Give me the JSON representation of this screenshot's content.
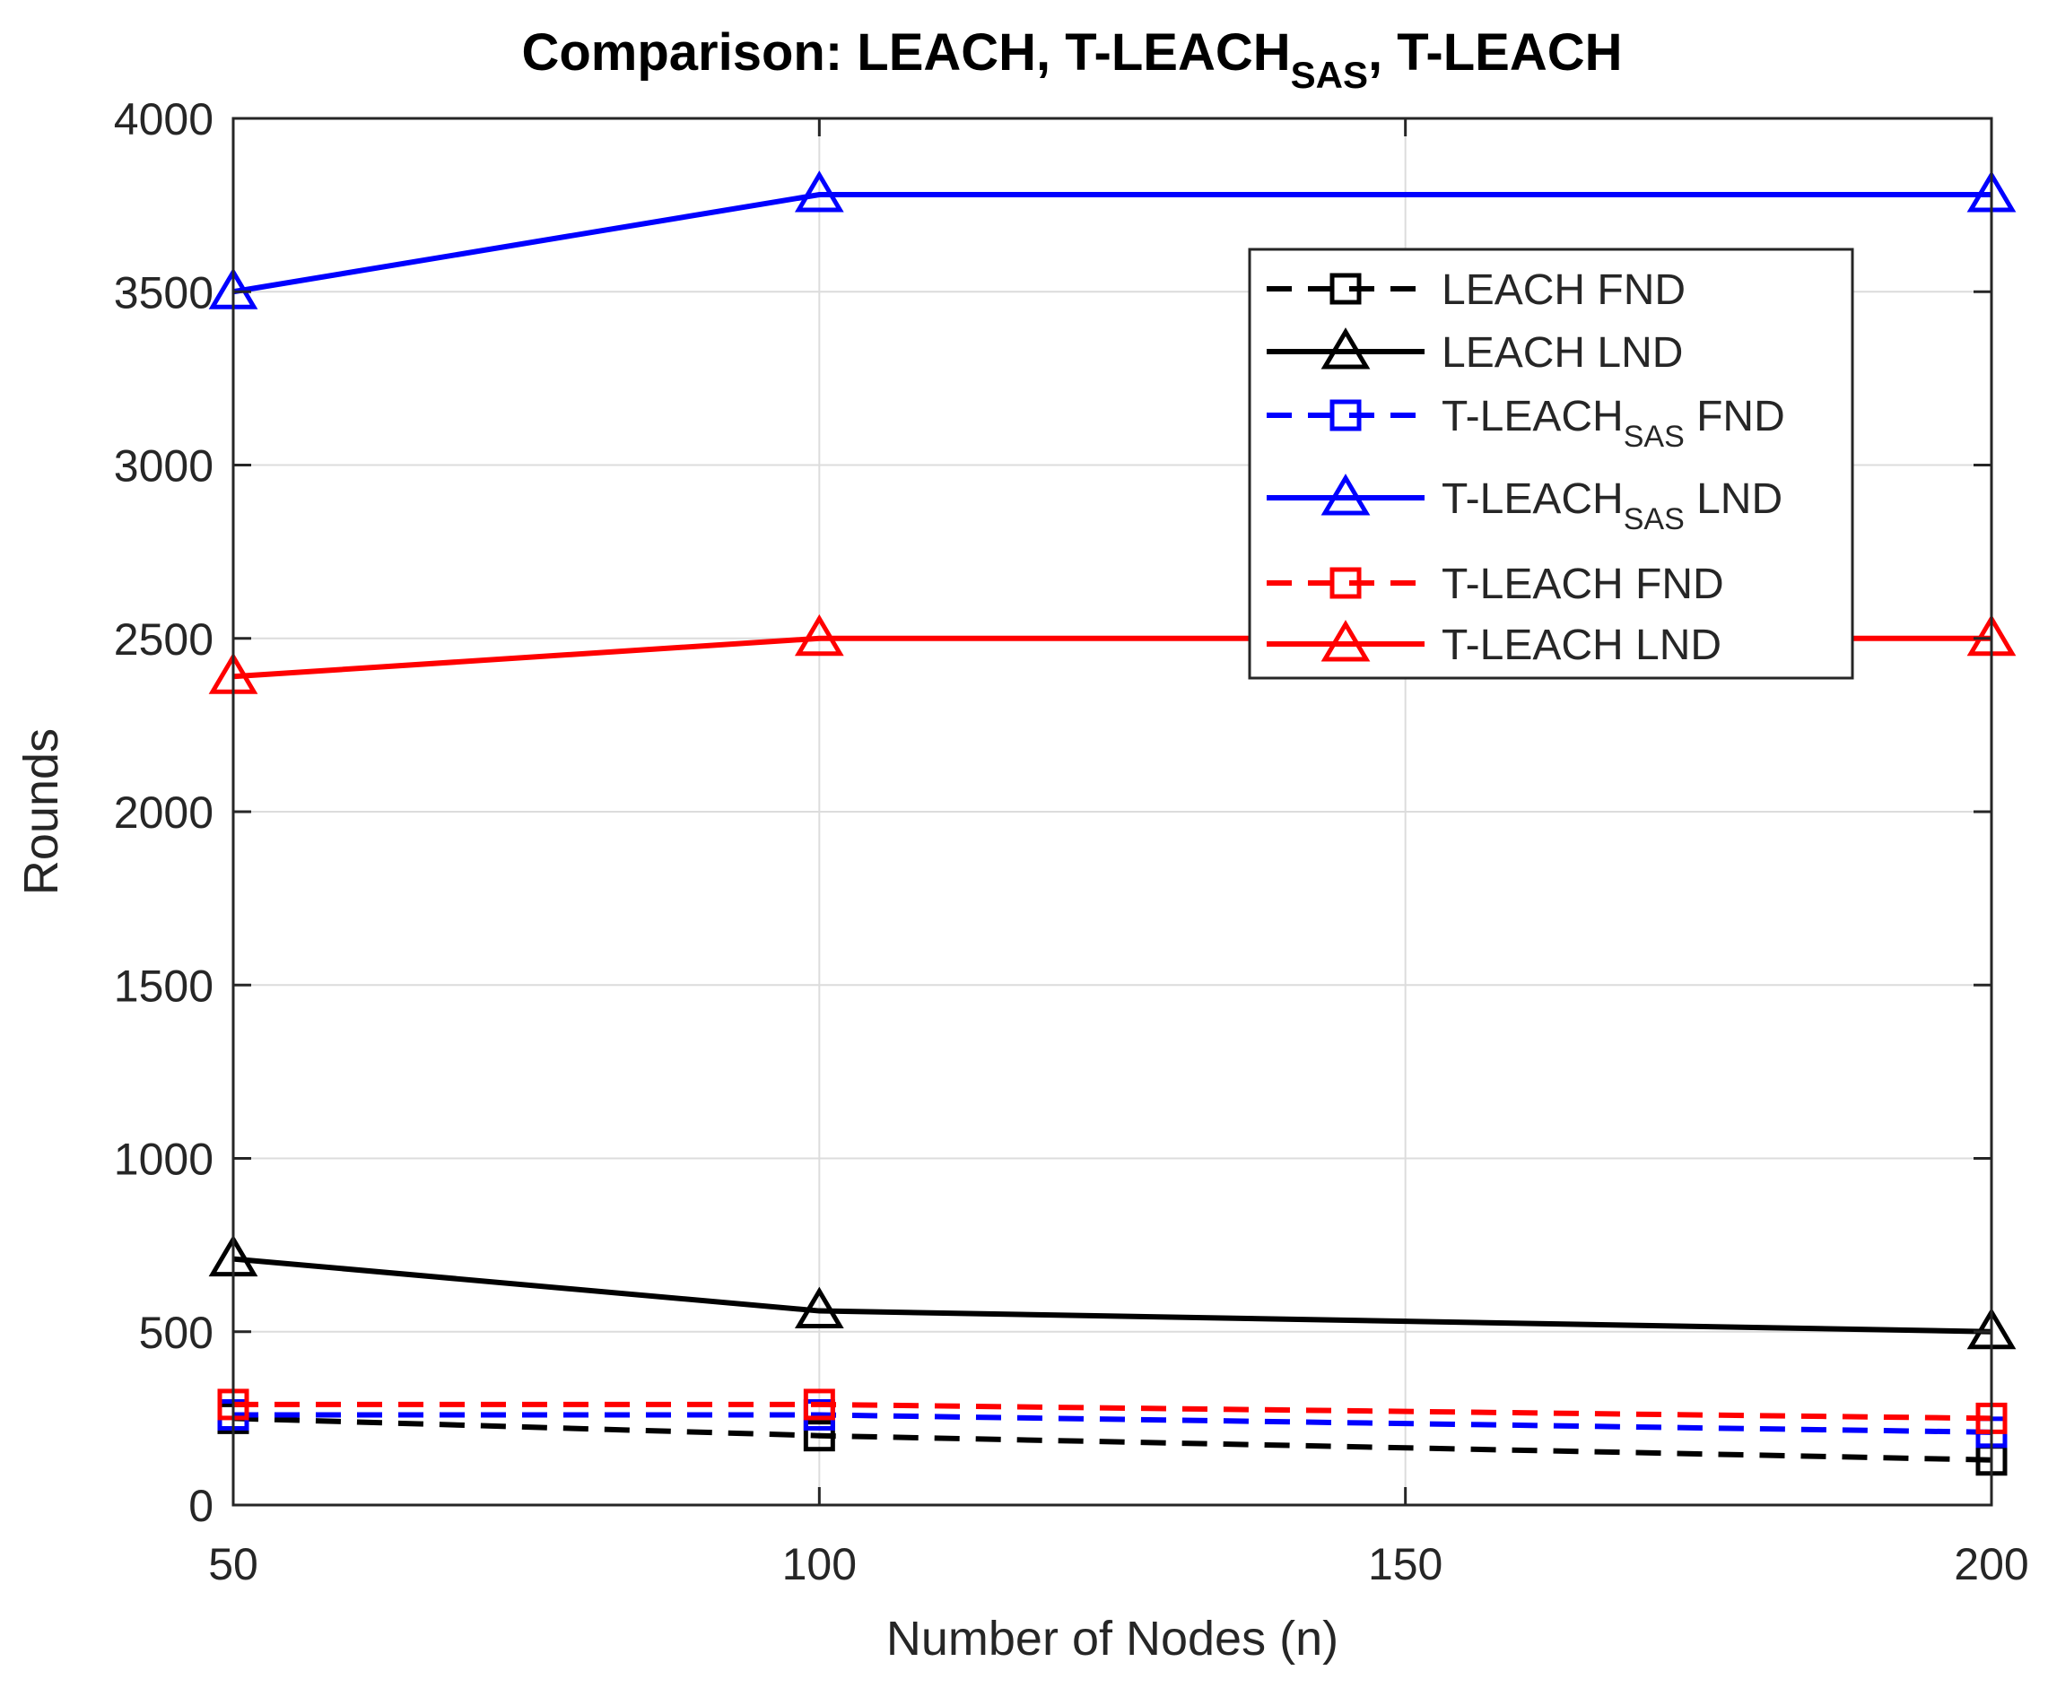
{
  "chart_data": {
    "type": "line",
    "title": {
      "prefix": "Comparison: LEACH, T-LEACH",
      "sub": "SAS",
      "suffix": ", T-LEACH"
    },
    "xlabel": "Number of Nodes (n)",
    "ylabel": "Rounds",
    "xlim": [
      50,
      200
    ],
    "ylim": [
      0,
      4000
    ],
    "xticks": [
      50,
      100,
      150,
      200
    ],
    "yticks": [
      0,
      500,
      1000,
      1500,
      2000,
      2500,
      3000,
      3500,
      4000
    ],
    "grid": true,
    "legend_position": "top-right",
    "x": [
      50,
      100,
      200
    ],
    "series": [
      {
        "name": "LEACH FND",
        "name_main": "LEACH FND",
        "name_sub": "",
        "name_tail": "",
        "color": "#000000",
        "dash": true,
        "marker": "square",
        "values": [
          250,
          200,
          130
        ]
      },
      {
        "name": "LEACH LND",
        "name_main": "LEACH LND",
        "name_sub": "",
        "name_tail": "",
        "color": "#000000",
        "dash": false,
        "marker": "triangle",
        "values": [
          710,
          560,
          500
        ]
      },
      {
        "name": "T-LEACHSAS FND",
        "name_main": "T-LEACH",
        "name_sub": "SAS",
        "name_tail": " FND",
        "color": "#0000ff",
        "dash": true,
        "marker": "square",
        "values": [
          260,
          260,
          210
        ]
      },
      {
        "name": "T-LEACHSAS LND",
        "name_main": "T-LEACH",
        "name_sub": "SAS",
        "name_tail": " LND",
        "color": "#0000ff",
        "dash": false,
        "marker": "triangle",
        "values": [
          3500,
          3780,
          3780
        ]
      },
      {
        "name": "T-LEACH FND",
        "name_main": "T-LEACH FND",
        "name_sub": "",
        "name_tail": "",
        "color": "#ff0000",
        "dash": true,
        "marker": "square",
        "values": [
          290,
          290,
          250
        ]
      },
      {
        "name": "T-LEACH LND",
        "name_main": "T-LEACH LND",
        "name_sub": "",
        "name_tail": "",
        "color": "#ff0000",
        "dash": false,
        "marker": "triangle",
        "values": [
          2390,
          2500,
          2500
        ]
      }
    ]
  }
}
